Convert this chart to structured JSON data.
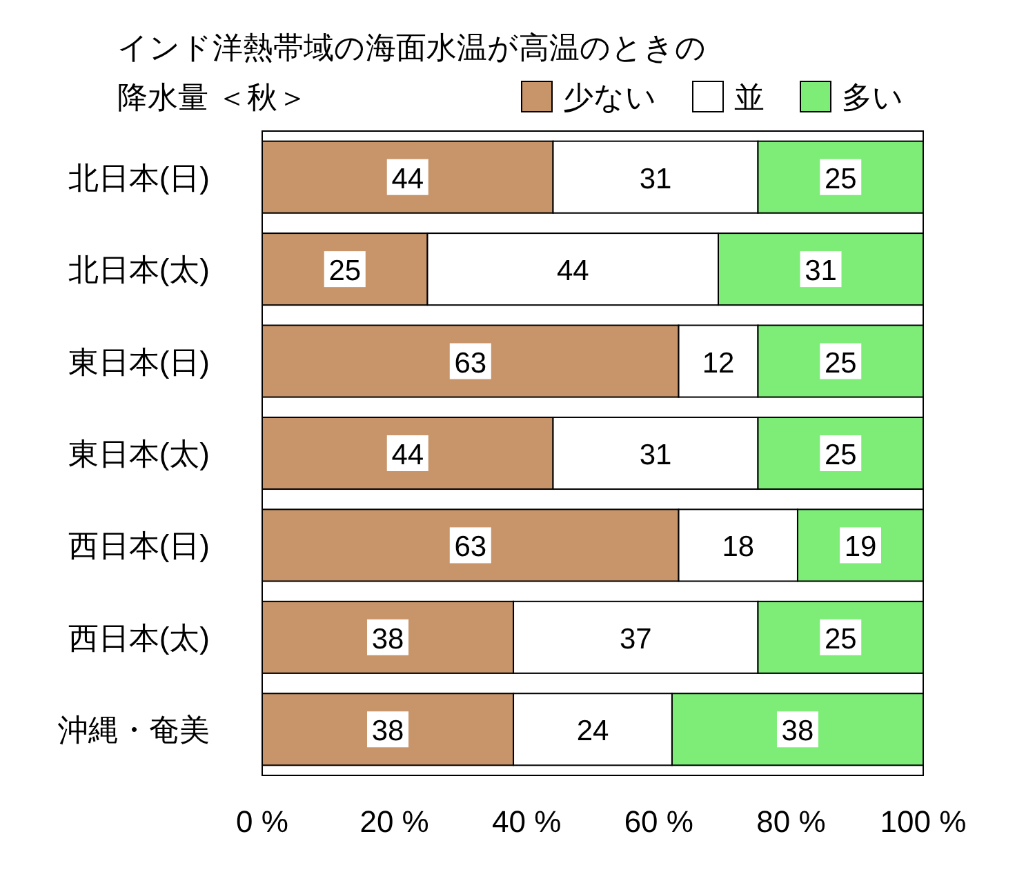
{
  "chart_data": {
    "type": "bar",
    "orientation": "horizontal",
    "stacked": true,
    "title": "インド洋熱帯域の海面水温が高温のときの",
    "subtitle": "降水量 ＜秋＞",
    "categories": [
      "北日本(日)",
      "北日本(太)",
      "東日本(日)",
      "東日本(太)",
      "西日本(日)",
      "西日本(太)",
      "沖縄・奄美"
    ],
    "series": [
      {
        "name": "少ない",
        "color": "#c8956a",
        "values": [
          44,
          25,
          63,
          44,
          63,
          38,
          38
        ]
      },
      {
        "name": "並",
        "color": "#ffffff",
        "values": [
          31,
          44,
          12,
          31,
          18,
          37,
          24
        ]
      },
      {
        "name": "多い",
        "color": "#7ded78",
        "values": [
          25,
          31,
          25,
          25,
          19,
          25,
          38
        ]
      }
    ],
    "xlim": [
      0,
      100
    ],
    "xticks": [
      {
        "value": 0,
        "label": "0 %"
      },
      {
        "value": 20,
        "label": "20 %"
      },
      {
        "value": 40,
        "label": "40 %"
      },
      {
        "value": 60,
        "label": "60 %"
      },
      {
        "value": 80,
        "label": "80 %"
      },
      {
        "value": 100,
        "label": "100 %"
      }
    ],
    "data_labels": true,
    "legend": "top right",
    "grid": false
  }
}
